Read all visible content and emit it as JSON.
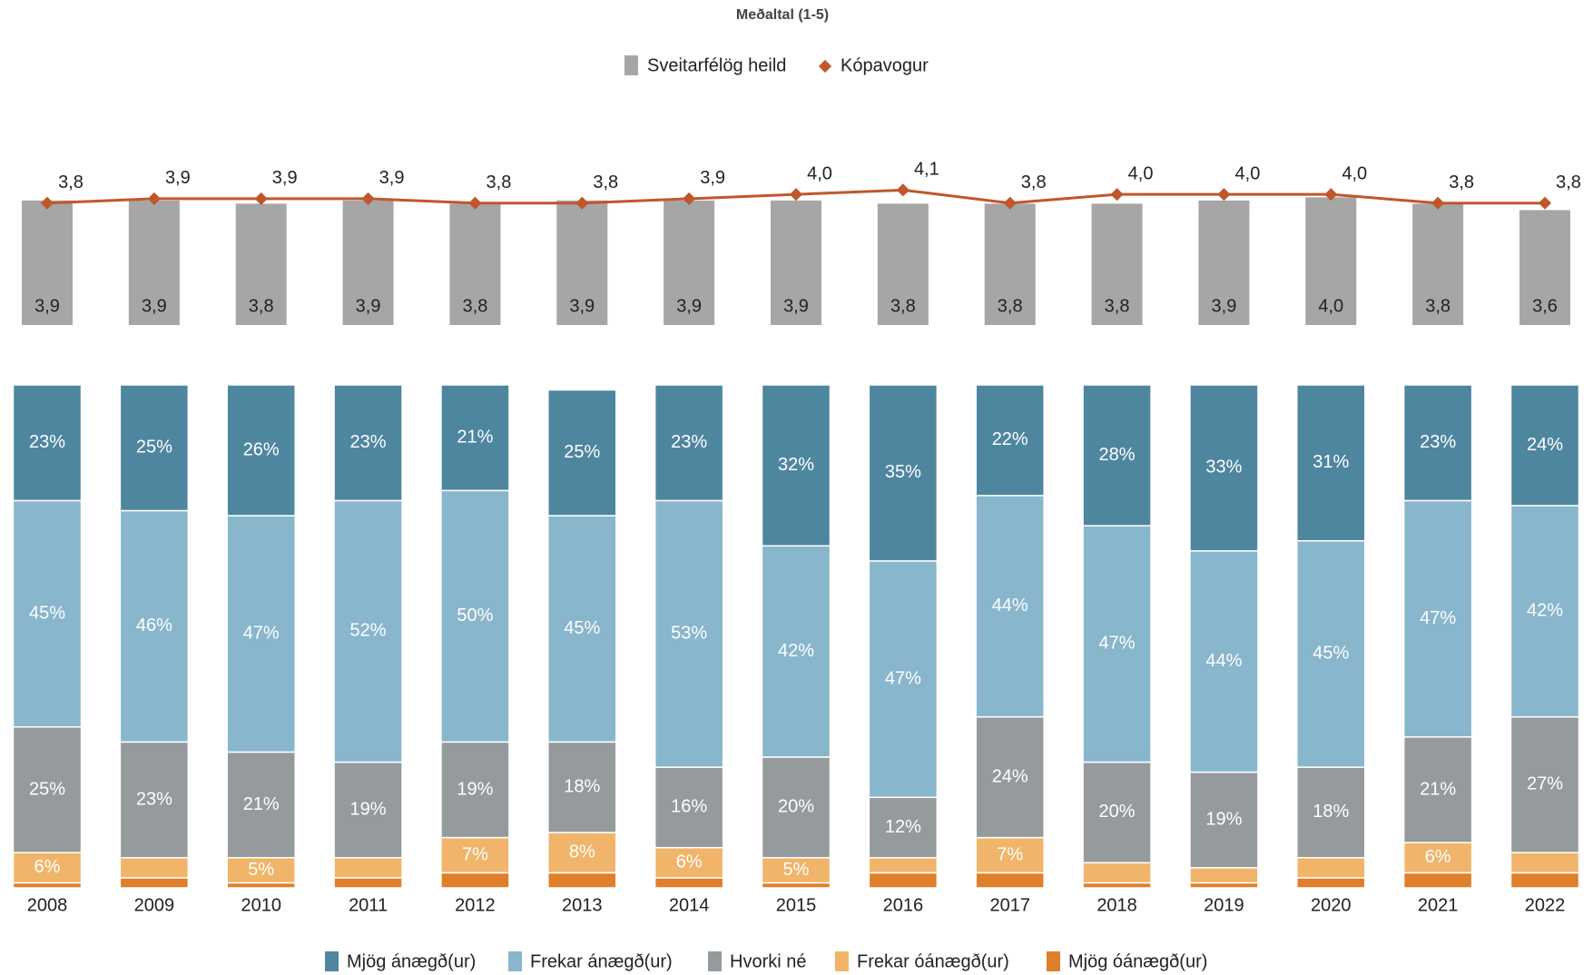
{
  "chart_data": [
    {
      "type": "bar",
      "title": "Meðaltal (1-5)",
      "ylim": [
        0,
        6
      ],
      "y2lim": [
        1,
        5.4
      ],
      "series": [
        {
          "name": "Sveitarfélög heild",
          "type": "bar",
          "color": "#a6a6a6",
          "values": [
            3.9,
            3.9,
            3.8,
            3.9,
            3.8,
            3.9,
            3.9,
            3.9,
            3.8,
            3.8,
            3.8,
            3.9,
            4.0,
            3.8,
            3.6
          ],
          "value_labels": [
            "3,9",
            "3,9",
            "3,8",
            "3,9",
            "3,8",
            "3,9",
            "3,9",
            "3,9",
            "3,8",
            "3,8",
            "3,8",
            "3,9",
            "4,0",
            "3,8",
            "3,6"
          ]
        },
        {
          "name": "Kópavogur",
          "type": "line",
          "axis": "y2",
          "color": "#c0572a",
          "values": [
            3.8,
            3.9,
            3.9,
            3.9,
            3.8,
            3.8,
            3.9,
            4.0,
            4.1,
            3.8,
            4.0,
            4.0,
            4.0,
            3.8,
            3.8
          ],
          "value_labels": [
            "3,8",
            "3,9",
            "3,9",
            "3,9",
            "3,8",
            "3,8",
            "3,9",
            "4,0",
            "4,1",
            "3,8",
            "4,0",
            "4,0",
            "4,0",
            "3,8",
            "3,8"
          ]
        }
      ]
    },
    {
      "type": "stacked_bar",
      "ylim": [
        0,
        100
      ],
      "categories": [
        "2008",
        "2009",
        "2010",
        "2011",
        "2012",
        "2013",
        "2014",
        "2015",
        "2016",
        "2017",
        "2018",
        "2019",
        "2020",
        "2021",
        "2022"
      ],
      "series": [
        {
          "name": "Mjög ánægð(ur)",
          "color": "#4e86a0",
          "values": [
            23,
            25,
            26,
            23,
            21,
            25,
            23,
            32,
            35,
            22,
            28,
            33,
            31,
            23,
            24
          ],
          "value_labels": [
            "23%",
            "25%",
            "26%",
            "23%",
            "21%",
            "25%",
            "23%",
            "32%",
            "35%",
            "22%",
            "28%",
            "33%",
            "31%",
            "23%",
            "24%"
          ]
        },
        {
          "name": "Frekar ánægð(ur)",
          "color": "#88b6cc",
          "values": [
            45,
            46,
            47,
            52,
            50,
            45,
            53,
            42,
            47,
            44,
            47,
            44,
            45,
            47,
            42
          ],
          "value_labels": [
            "45%",
            "46%",
            "47%",
            "52%",
            "50%",
            "45%",
            "53%",
            "42%",
            "47%",
            "44%",
            "47%",
            "44%",
            "45%",
            "47%",
            "42%"
          ]
        },
        {
          "name": "Hvorki né",
          "color": "#959a9c",
          "values": [
            25,
            23,
            21,
            19,
            19,
            18,
            16,
            20,
            12,
            24,
            20,
            19,
            18,
            21,
            27
          ],
          "value_labels": [
            "25%",
            "23%",
            "21%",
            "19%",
            "19%",
            "18%",
            "16%",
            "20%",
            "12%",
            "24%",
            "20%",
            "19%",
            "18%",
            "21%",
            "27%"
          ]
        },
        {
          "name": "Frekar óánægð(ur)",
          "color": "#f0b56a",
          "values": [
            6,
            4,
            5,
            4,
            7,
            8,
            6,
            5,
            3,
            7,
            4,
            3,
            4,
            6,
            4
          ],
          "value_labels": [
            "6%",
            null,
            "5%",
            null,
            "7%",
            "8%",
            "6%",
            "5%",
            null,
            "7%",
            null,
            null,
            null,
            "6%",
            null
          ]
        },
        {
          "name": "Mjög óánægð(ur)",
          "color": "#e07f2a",
          "values": [
            1,
            2,
            1,
            2,
            3,
            3,
            2,
            1,
            3,
            3,
            1,
            1,
            2,
            3,
            3
          ],
          "value_labels": [
            null,
            null,
            null,
            null,
            null,
            null,
            null,
            null,
            null,
            null,
            null,
            null,
            null,
            null,
            null
          ]
        }
      ]
    }
  ]
}
